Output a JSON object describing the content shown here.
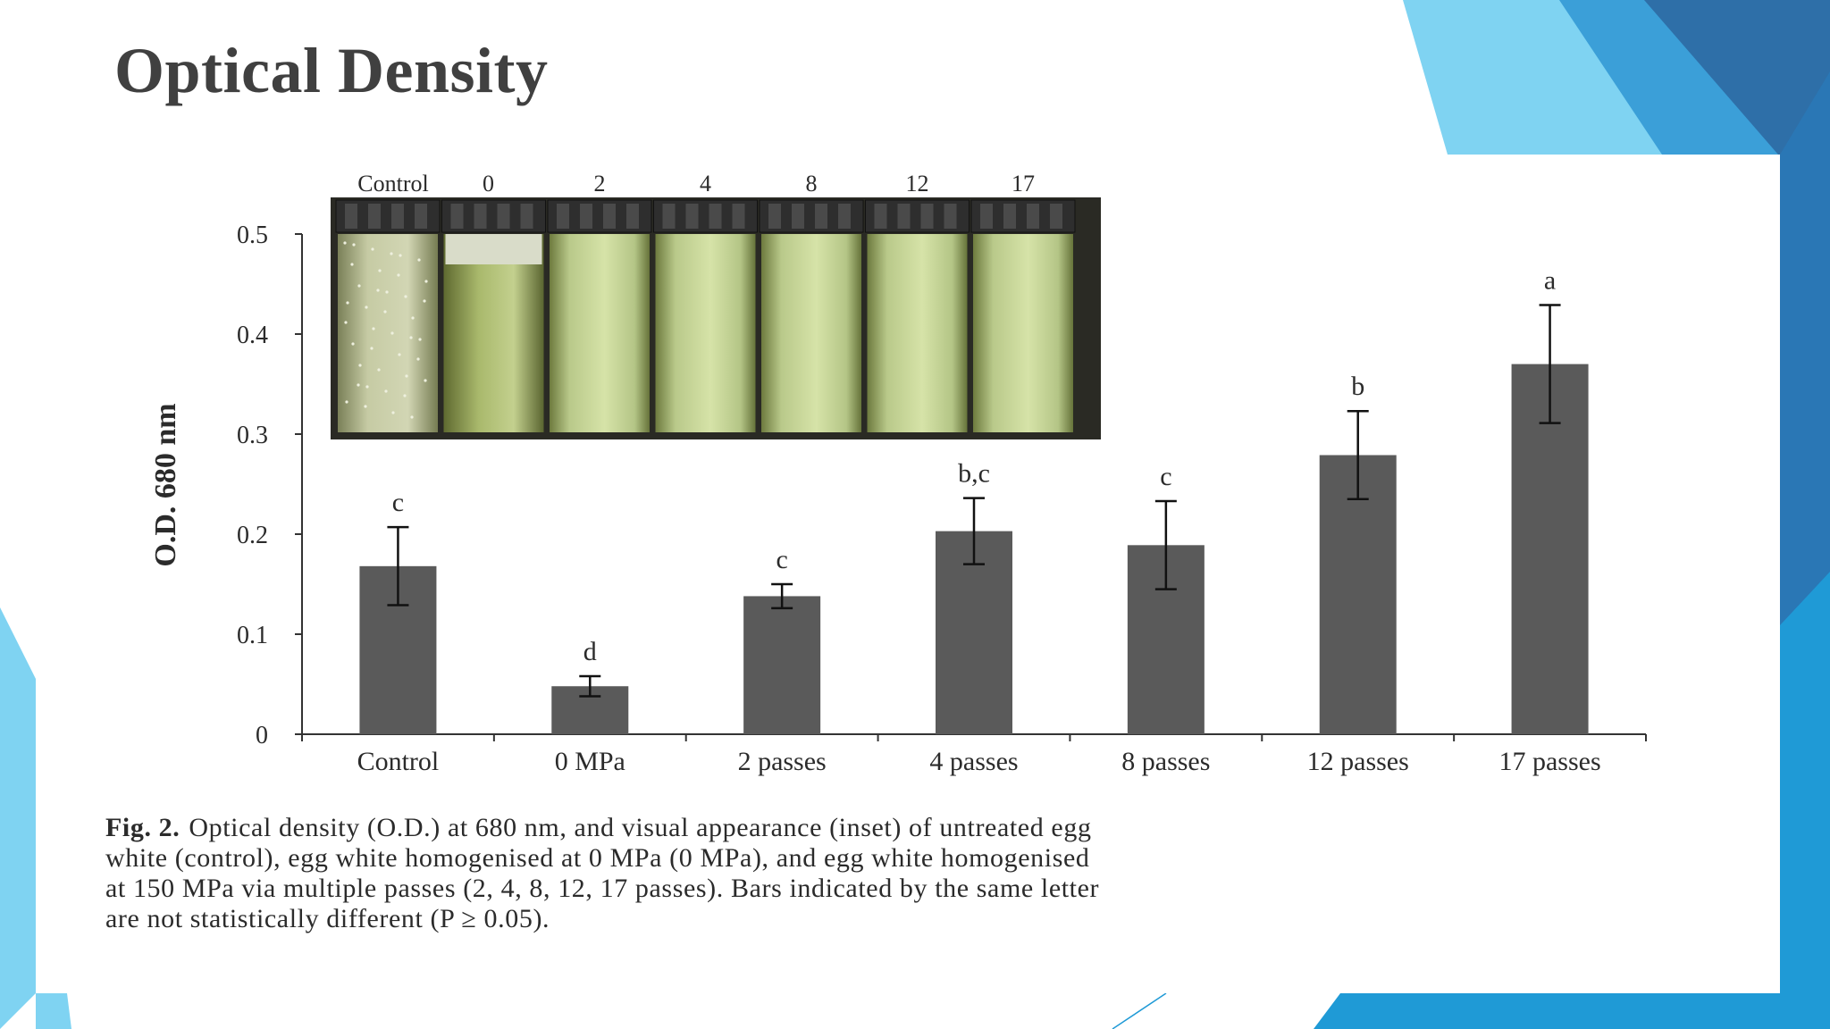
{
  "slide": {
    "title": "Optical Density"
  },
  "colors": {
    "bar": "#5a5a5a",
    "axis": "#333333",
    "accent_dark": "#2e75b6",
    "accent_light": "#7fd3f2",
    "accent_mid": "#1f9ad6"
  },
  "inset": {
    "labels": [
      "Control",
      "0",
      "2",
      "4",
      "8",
      "12",
      "17"
    ]
  },
  "caption": {
    "fig_label": "Fig. 2.",
    "lines": [
      "Optical density (O.D.) at 680 nm, and visual appearance (inset) of untreated egg",
      "white (control), egg white homogenised at 0 MPa (0 MPa), and egg white homogenised",
      "at 150 MPa via multiple passes (2, 4, 8, 12, 17 passes). Bars indicated by the same letter",
      "are not statistically different (P ≥ 0.05)."
    ]
  },
  "chart_data": {
    "type": "bar",
    "title": "",
    "xlabel": "",
    "ylabel": "O.D. 680 nm",
    "ylim": [
      0,
      0.5
    ],
    "yticks": [
      0,
      0.1,
      0.2,
      0.3,
      0.4,
      0.5
    ],
    "ytick_labels": [
      "0",
      "0.1",
      "0.2",
      "0.3",
      "0.4",
      "0.5"
    ],
    "categories": [
      "Control",
      "0 MPa",
      "2 passes",
      "4 passes",
      "8 passes",
      "12 passes",
      "17 passes"
    ],
    "values": [
      0.168,
      0.048,
      0.138,
      0.203,
      0.189,
      0.279,
      0.37
    ],
    "error": [
      0.039,
      0.01,
      0.012,
      0.033,
      0.044,
      0.044,
      0.059
    ],
    "significance": [
      "c",
      "d",
      "c",
      "b,c",
      "c",
      "b",
      "a"
    ],
    "grid": false,
    "legend": "none"
  }
}
